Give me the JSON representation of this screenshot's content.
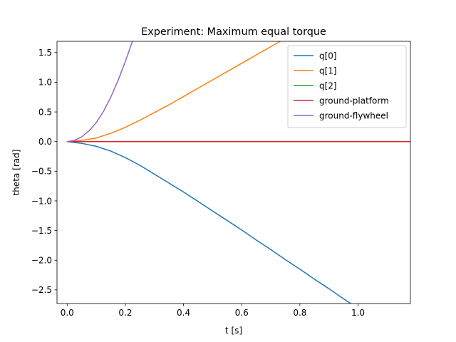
{
  "chart_data": {
    "type": "line",
    "title": "Experiment: Maximum equal torque",
    "xlabel": "t [s]",
    "ylabel": "theta [rad]",
    "xlim": [
      -0.035,
      1.18
    ],
    "ylim": [
      -2.73,
      1.69
    ],
    "xticks": [
      0.0,
      0.2,
      0.4,
      0.6,
      0.8,
      1.0
    ],
    "xtick_labels": [
      "0.0",
      "0.2",
      "0.4",
      "0.6",
      "0.8",
      "1.0"
    ],
    "yticks": [
      -2.5,
      -2.0,
      -1.5,
      -1.0,
      -0.5,
      0.0,
      0.5,
      1.0,
      1.5
    ],
    "ytick_labels": [
      "−2.5",
      "−2.0",
      "−1.5",
      "−1.0",
      "−0.5",
      "0.0",
      "0.5",
      "1.0",
      "1.5"
    ],
    "grid": false,
    "legend_position": "top-right",
    "series": [
      {
        "name": "q[0]",
        "color": "#1f77b4",
        "x": [
          0.0,
          0.05,
          0.1,
          0.15,
          0.2,
          0.25,
          0.3,
          0.35,
          0.4,
          0.45,
          0.5,
          0.55,
          0.6,
          0.65,
          0.7,
          0.75,
          0.8,
          0.85,
          0.9,
          0.95,
          1.0,
          1.05
        ],
        "y": [
          0.0,
          -0.03,
          -0.08,
          -0.16,
          -0.27,
          -0.4,
          -0.55,
          -0.7,
          -0.85,
          -1.01,
          -1.17,
          -1.33,
          -1.49,
          -1.66,
          -1.82,
          -1.99,
          -2.15,
          -2.32,
          -2.48,
          -2.65,
          -2.81,
          -2.97
        ]
      },
      {
        "name": "q[1]",
        "color": "#ff7f0e",
        "x": [
          0.0,
          0.05,
          0.1,
          0.15,
          0.2,
          0.25,
          0.3,
          0.35,
          0.4,
          0.45,
          0.5,
          0.55,
          0.6,
          0.65,
          0.7,
          0.75
        ],
        "y": [
          0.0,
          0.02,
          0.06,
          0.14,
          0.24,
          0.36,
          0.49,
          0.62,
          0.76,
          0.9,
          1.04,
          1.18,
          1.32,
          1.46,
          1.6,
          1.74
        ]
      },
      {
        "name": "q[2]",
        "color": "#2ca02c",
        "x": [
          0.0,
          1.18
        ],
        "y": [
          0.0,
          0.0
        ]
      },
      {
        "name": "ground-platform",
        "color": "#d62728",
        "x": [
          0.0,
          1.18
        ],
        "y": [
          0.0,
          0.0
        ]
      },
      {
        "name": "ground-flywheel",
        "color": "#9467bd",
        "x": [
          0.0,
          0.025,
          0.05,
          0.075,
          0.1,
          0.125,
          0.15,
          0.175,
          0.2,
          0.225,
          0.25
        ],
        "y": [
          0.0,
          0.02,
          0.08,
          0.18,
          0.32,
          0.51,
          0.75,
          1.03,
          1.35,
          1.7,
          2.07
        ]
      }
    ]
  }
}
